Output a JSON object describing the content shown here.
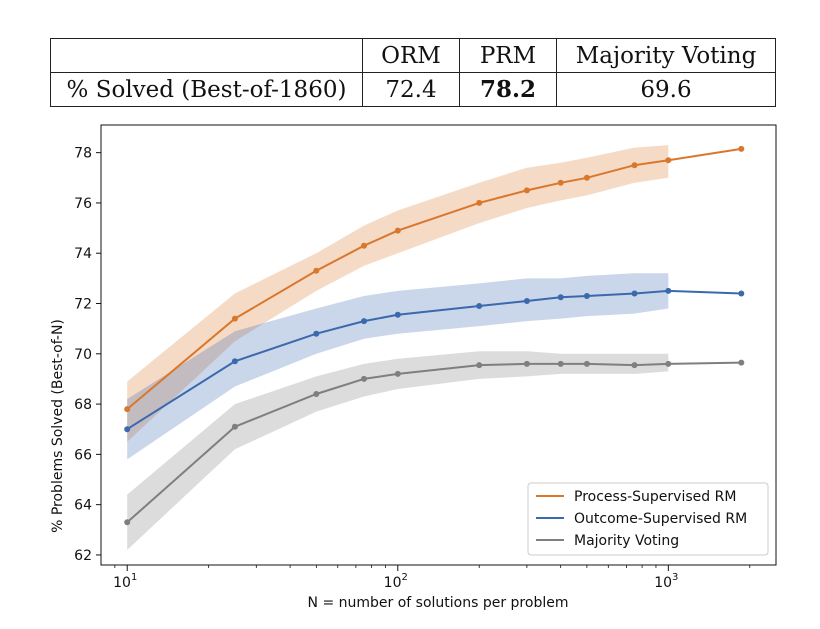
{
  "table": {
    "headers": [
      "",
      "ORM",
      "PRM",
      "Majority Voting"
    ],
    "row_label": "% Solved (Best-of-1860)",
    "values": [
      "72.4",
      "78.2",
      "69.6"
    ]
  },
  "chart_data": {
    "type": "line",
    "xscale": "log",
    "xlabel": "N = number of solutions per problem",
    "ylabel": "% Problems Solved (Best-of-N)",
    "xlim": [
      8,
      2500
    ],
    "ylim": [
      61.6,
      79.1
    ],
    "xticks": [
      {
        "value": 10,
        "base": "10",
        "exp": "1"
      },
      {
        "value": 100,
        "base": "10",
        "exp": "2"
      },
      {
        "value": 1000,
        "base": "10",
        "exp": "3"
      }
    ],
    "yticks": [
      62,
      64,
      66,
      68,
      70,
      72,
      74,
      76,
      78
    ],
    "legend_position": "lower-right",
    "series": [
      {
        "name": "Process-Supervised RM",
        "color": "#d9782d",
        "x": [
          10,
          25,
          50,
          75,
          100,
          200,
          300,
          400,
          500,
          750,
          1000,
          1860
        ],
        "y": [
          67.8,
          71.4,
          73.3,
          74.3,
          74.9,
          76.0,
          76.5,
          76.8,
          77.0,
          77.5,
          77.7,
          78.15
        ],
        "band_lower": [
          66.5,
          70.5,
          72.5,
          73.5,
          74.0,
          75.2,
          75.8,
          76.1,
          76.3,
          76.8,
          77.0
        ],
        "band_upper": [
          68.9,
          72.4,
          74.0,
          75.1,
          75.7,
          76.8,
          77.4,
          77.6,
          77.8,
          78.2,
          78.3
        ]
      },
      {
        "name": "Outcome-Supervised RM",
        "color": "#3b69ad",
        "x": [
          10,
          25,
          50,
          75,
          100,
          200,
          300,
          400,
          500,
          750,
          1000,
          1860
        ],
        "y": [
          67.0,
          69.7,
          70.8,
          71.3,
          71.55,
          71.9,
          72.1,
          72.25,
          72.3,
          72.4,
          72.5,
          72.4
        ],
        "band_lower": [
          65.8,
          68.7,
          70.0,
          70.6,
          70.8,
          71.1,
          71.3,
          71.4,
          71.5,
          71.6,
          71.8
        ],
        "band_upper": [
          68.2,
          70.9,
          71.8,
          72.3,
          72.5,
          72.8,
          73.0,
          73.0,
          73.1,
          73.2,
          73.2
        ]
      },
      {
        "name": "Majority Voting",
        "color": "#7f7f7f",
        "x": [
          10,
          25,
          50,
          75,
          100,
          200,
          300,
          400,
          500,
          750,
          1000,
          1860
        ],
        "y": [
          63.3,
          67.1,
          68.4,
          69.0,
          69.2,
          69.55,
          69.6,
          69.6,
          69.6,
          69.55,
          69.6,
          69.65
        ],
        "band_lower": [
          62.2,
          66.2,
          67.7,
          68.3,
          68.6,
          69.0,
          69.1,
          69.2,
          69.2,
          69.2,
          69.3
        ],
        "band_upper": [
          64.4,
          68.0,
          69.1,
          69.6,
          69.8,
          70.1,
          70.1,
          70.0,
          70.0,
          70.0,
          70.0
        ]
      }
    ]
  }
}
